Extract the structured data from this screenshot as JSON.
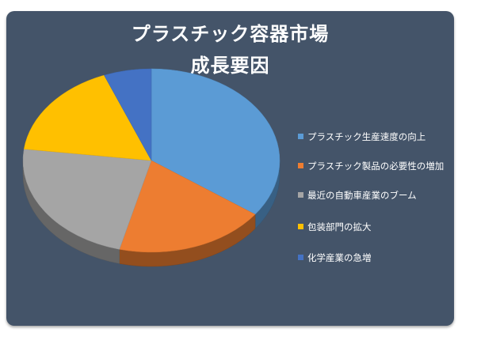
{
  "chart_data": {
    "type": "pie",
    "title": "プラスチック容器市場",
    "subtitle": "成長要因",
    "categories": [
      "プラスチック生産速度の向上",
      "プラスチック製品の必要性の増加",
      "最近の自動車産業のブーム",
      "包装部門の拡大",
      "化学産業の急増"
    ],
    "values": [
      35,
      19,
      23,
      17,
      6
    ],
    "colors": [
      "#5b9bd5",
      "#ed7d31",
      "#a5a5a5",
      "#ffc000",
      "#4472c4"
    ],
    "legend_position": "right",
    "style": "3d"
  }
}
